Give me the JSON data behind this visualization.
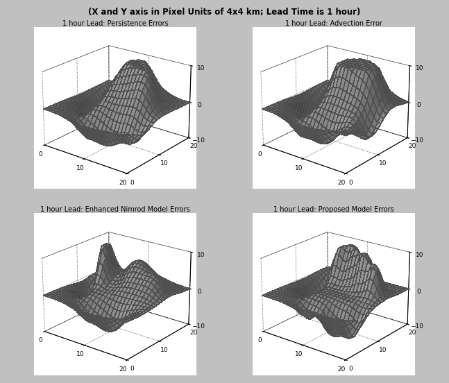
{
  "subtitle": "(X and Y axis in Pixel Units of 4x4 km; Lead Time is 1 hour)",
  "titles": [
    "1 hour Lead: Persistence Errors",
    "1 hour Lead: Advection Error",
    "1 hour Lead: Enhanced Nimrod Model Errors",
    "1 hour Lead: Proposed Model Errors"
  ],
  "grid_size": 25,
  "zlim": [
    -10,
    10
  ],
  "zticks": [
    -10,
    0,
    10
  ],
  "axis_ticks": [
    0,
    10,
    20
  ],
  "background_color": "#c0c0c0",
  "elevation": 22,
  "azimuth": -52
}
